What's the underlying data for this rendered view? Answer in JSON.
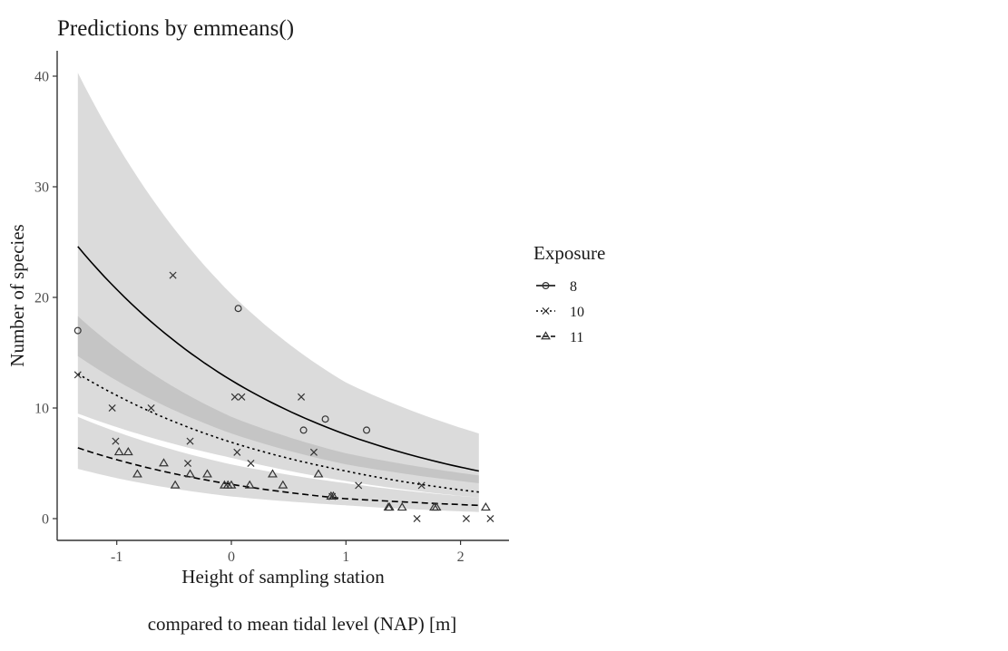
{
  "chart_data": {
    "type": "line",
    "title": "Predictions by emmeans()",
    "xlabel": "Height of sampling station",
    "xlabel2": "compared to mean tidal level (NAP) [m]",
    "ylabel": "Number of species",
    "xlim": [
      -1.5,
      2.4
    ],
    "ylim": [
      -1.8,
      42.5
    ],
    "xticks": [
      -1,
      0,
      1,
      2
    ],
    "xtick_labels": [
      "-1",
      "0",
      "1",
      "2"
    ],
    "yticks": [
      0,
      10,
      20,
      30,
      40
    ],
    "ytick_labels": [
      "0",
      "10",
      "20",
      "30",
      "40"
    ],
    "grid": false,
    "legend": {
      "title": "Exposure",
      "position": "right",
      "entries": [
        "8",
        "10",
        "11"
      ]
    },
    "curve_x": [
      -1.34,
      0,
      1,
      2.16
    ],
    "series": [
      {
        "name": "8",
        "linetype": "solid",
        "shape": "circle",
        "fit": [
          24.6,
          12.5,
          7.6,
          4.3
        ],
        "lower": [
          14.7,
          7.7,
          4.9,
          3.2
        ],
        "upper": [
          40.3,
          20.3,
          12.3,
          7.7
        ],
        "points": [
          [
            -1.34,
            17
          ],
          [
            0.06,
            19
          ],
          [
            0.63,
            8
          ],
          [
            0.82,
            9
          ],
          [
            1.18,
            8
          ]
        ]
      },
      {
        "name": "10",
        "linetype": "dotted",
        "shape": "cross",
        "fit": [
          13.1,
          6.9,
          4.3,
          2.4
        ],
        "lower": [
          9.5,
          5.5,
          3.4,
          1.9
        ],
        "upper": [
          18.3,
          9.2,
          5.9,
          3.9
        ],
        "points": [
          [
            -1.34,
            13
          ],
          [
            -1.04,
            10
          ],
          [
            -0.7,
            10
          ],
          [
            -1.01,
            7
          ],
          [
            -0.51,
            22
          ],
          [
            -0.36,
            7
          ],
          [
            -0.38,
            5
          ],
          [
            0.03,
            11
          ],
          [
            0.09,
            11
          ],
          [
            0.05,
            6
          ],
          [
            0.17,
            5
          ],
          [
            0.61,
            11
          ],
          [
            0.72,
            6
          ],
          [
            0.88,
            2
          ],
          [
            1.11,
            3
          ],
          [
            1.66,
            3
          ],
          [
            1.62,
            0
          ],
          [
            2.05,
            0
          ],
          [
            2.26,
            0
          ]
        ]
      },
      {
        "name": "11",
        "linetype": "dashed",
        "shape": "triangle",
        "fit": [
          6.4,
          3.1,
          1.8,
          1.2
        ],
        "lower": [
          4.5,
          2.0,
          1.2,
          0.6
        ],
        "upper": [
          9.2,
          4.9,
          3.2,
          1.9
        ],
        "points": [
          [
            -0.98,
            6
          ],
          [
            -0.9,
            6
          ],
          [
            -0.82,
            4
          ],
          [
            -0.59,
            5
          ],
          [
            -0.49,
            3
          ],
          [
            -0.36,
            4
          ],
          [
            -0.21,
            4
          ],
          [
            -0.06,
            3
          ],
          [
            -0.03,
            3
          ],
          [
            0.0,
            3
          ],
          [
            0.16,
            3
          ],
          [
            0.36,
            4
          ],
          [
            0.45,
            3
          ],
          [
            0.76,
            4
          ],
          [
            0.87,
            2
          ],
          [
            0.89,
            2
          ],
          [
            1.37,
            1
          ],
          [
            1.38,
            1
          ],
          [
            1.49,
            1
          ],
          [
            1.77,
            1
          ],
          [
            1.79,
            1
          ],
          [
            2.22,
            1
          ]
        ]
      }
    ],
    "colors": {
      "ribbon": "#a6a6a6",
      "ribbon_opacity": 0.4,
      "line": "#000000",
      "axis": "#333333",
      "point": "#333333"
    }
  }
}
